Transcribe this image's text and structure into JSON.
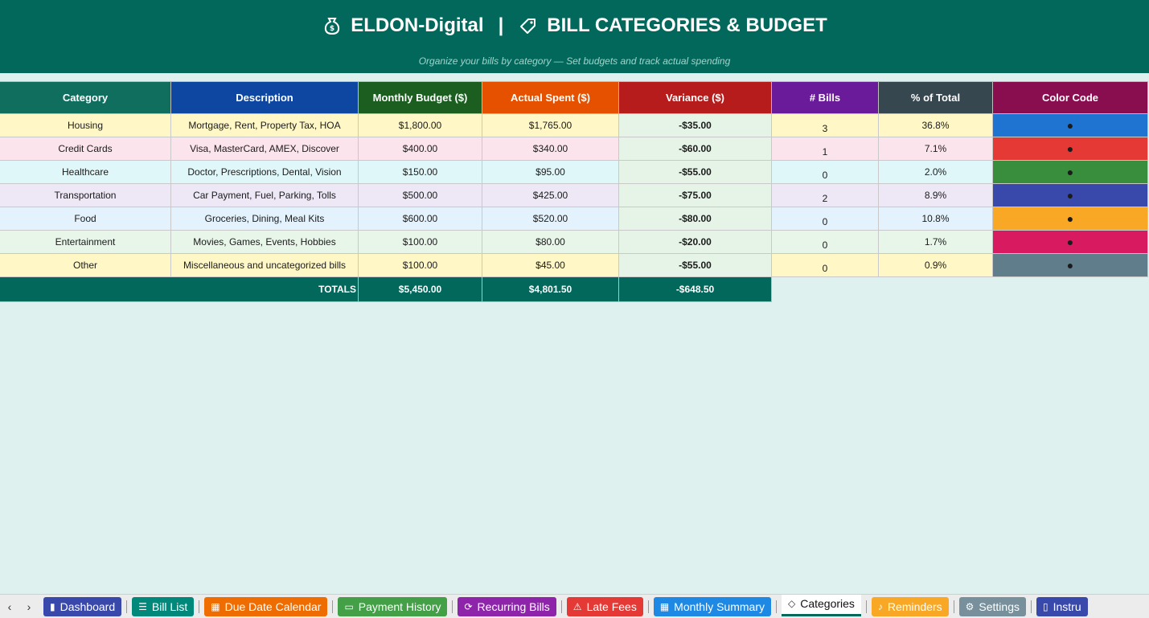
{
  "header": {
    "brand": "ELDON-Digital",
    "separator": "|",
    "title": "BILL CATEGORIES & BUDGET",
    "subtitle": "Organize your bills by category — Set budgets and track actual spending"
  },
  "table": {
    "columns": [
      {
        "label": "Category",
        "bg": "#0f6e5e"
      },
      {
        "label": "Description",
        "bg": "#0d47a1"
      },
      {
        "label": "Monthly Budget ($)",
        "bg": "#1b5e20"
      },
      {
        "label": "Actual Spent ($)",
        "bg": "#e65100"
      },
      {
        "label": "Variance ($)",
        "bg": "#b71c1c"
      },
      {
        "label": "# Bills",
        "bg": "#6a1b9a"
      },
      {
        "label": "% of Total",
        "bg": "#37474f"
      },
      {
        "label": "Color Code",
        "bg": "#880e4f"
      }
    ],
    "rows": [
      {
        "category": "Housing",
        "description": "Mortgage, Rent, Property Tax, HOA",
        "budget": "$1,800.00",
        "spent": "$1,765.00",
        "variance": "-$35.00",
        "bills": "3",
        "pct": "36.8%",
        "dot": "●",
        "row_bg": "#fff8c6",
        "color": "#1e74d0"
      },
      {
        "category": "Credit Cards",
        "description": "Visa, MasterCard, AMEX, Discover",
        "budget": "$400.00",
        "spent": "$340.00",
        "variance": "-$60.00",
        "bills": "1",
        "pct": "7.1%",
        "dot": "●",
        "row_bg": "#fce4ec",
        "color": "#e53935"
      },
      {
        "category": "Healthcare",
        "description": "Doctor, Prescriptions, Dental, Vision",
        "budget": "$150.00",
        "spent": "$95.00",
        "variance": "-$55.00",
        "bills": "0",
        "pct": "2.0%",
        "dot": "●",
        "row_bg": "#e0f7fa",
        "color": "#388e3c"
      },
      {
        "category": "Transportation",
        "description": "Car Payment, Fuel, Parking, Tolls",
        "budget": "$500.00",
        "spent": "$425.00",
        "variance": "-$75.00",
        "bills": "2",
        "pct": "8.9%",
        "dot": "●",
        "row_bg": "#ede7f6",
        "color": "#3949ab"
      },
      {
        "category": "Food",
        "description": "Groceries, Dining, Meal Kits",
        "budget": "$600.00",
        "spent": "$520.00",
        "variance": "-$80.00",
        "bills": "0",
        "pct": "10.8%",
        "dot": "●",
        "row_bg": "#e3f2fd",
        "color": "#f9a825"
      },
      {
        "category": "Entertainment",
        "description": "Movies, Games, Events, Hobbies",
        "budget": "$100.00",
        "spent": "$80.00",
        "variance": "-$20.00",
        "bills": "0",
        "pct": "1.7%",
        "dot": "●",
        "row_bg": "#e8f5e9",
        "color": "#d81b60"
      },
      {
        "category": "Other",
        "description": "Miscellaneous and uncategorized bills",
        "budget": "$100.00",
        "spent": "$45.00",
        "variance": "-$55.00",
        "bills": "0",
        "pct": "0.9%",
        "dot": "●",
        "row_bg": "#fff8c6",
        "color": "#607d8b"
      }
    ],
    "totals": {
      "label": "TOTALS",
      "budget": "$5,450.00",
      "spent": "$4,801.50",
      "variance": "-$648.50"
    }
  },
  "tabs": {
    "prev": "‹",
    "next": "›",
    "items": [
      {
        "label": "Dashboard",
        "icon": "bar-chart-icon",
        "glyph": "▮",
        "color": "#3949ab"
      },
      {
        "label": "Bill List",
        "icon": "list-icon",
        "glyph": "☰",
        "color": "#00897b"
      },
      {
        "label": "Due Date Calendar",
        "icon": "calendar-icon",
        "glyph": "▦",
        "color": "#ef6c00"
      },
      {
        "label": "Payment History",
        "icon": "credit-card-icon",
        "glyph": "▭",
        "color": "#43a047"
      },
      {
        "label": "Recurring Bills",
        "icon": "repeat-icon",
        "glyph": "⟳",
        "color": "#8e24aa"
      },
      {
        "label": "Late Fees",
        "icon": "warning-icon",
        "glyph": "⚠",
        "color": "#e53935"
      },
      {
        "label": "Monthly Summary",
        "icon": "calendar-icon",
        "glyph": "▦",
        "color": "#1e88e5"
      },
      {
        "label": "Categories",
        "icon": "tag-icon",
        "glyph": "◇",
        "color": "#ffffff",
        "active": true
      },
      {
        "label": "Reminders",
        "icon": "bell-icon",
        "glyph": "♪",
        "color": "#f9a825"
      },
      {
        "label": "Settings",
        "icon": "gear-icon",
        "glyph": "⚙",
        "color": "#78909c"
      },
      {
        "label": "Instru",
        "icon": "book-icon",
        "glyph": "▯",
        "color": "#3949ab"
      }
    ]
  }
}
